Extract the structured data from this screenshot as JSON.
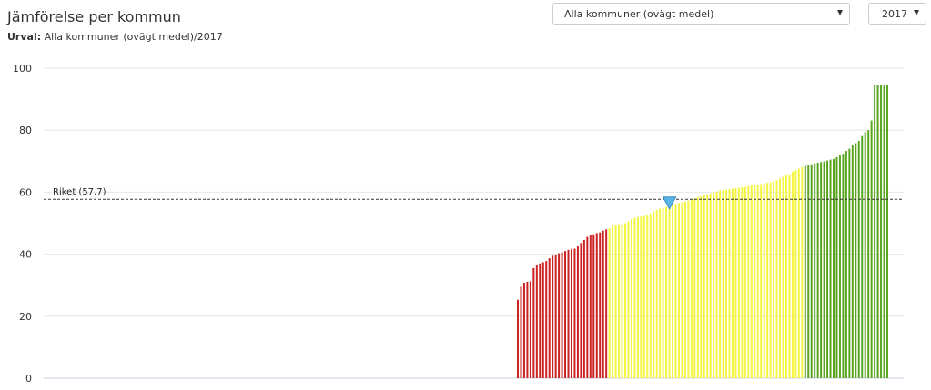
{
  "header": {
    "title": "Jämförelse per kommun",
    "subtitle_label": "Urval:",
    "subtitle_value": "Alla kommuner (ovägt medel)/2017"
  },
  "controls": {
    "kommun_select": "Alla kommuner (ovägt medel)",
    "year_select": "2017"
  },
  "icons": {
    "dropdown": "chevron-down-icon",
    "marker": "triangle-down-icon"
  },
  "colors": {
    "low": "#cc2222",
    "mid": "#f5f542",
    "high": "#5aa520",
    "reference_line": "#333333",
    "marker": "#5ab4e5",
    "grid": "#e6e6e6"
  },
  "chart_data": {
    "type": "bar",
    "title": "",
    "ylim": [
      0,
      100
    ],
    "yticks": [
      0,
      20,
      40,
      60,
      80,
      100
    ],
    "grid": true,
    "reference_line": {
      "label": "Riket (57.7)",
      "value": 57.7
    },
    "highlight_value": 55.5,
    "values": [
      25.3,
      29.5,
      30.8,
      31.1,
      31.3,
      35.5,
      36.5,
      37.0,
      37.4,
      37.8,
      38.7,
      39.5,
      39.9,
      40.3,
      40.6,
      41.0,
      41.4,
      41.7,
      41.8,
      42.5,
      43.6,
      44.6,
      45.6,
      46.1,
      46.4,
      46.8,
      47.0,
      47.6,
      48.0,
      48.4,
      49.2,
      49.5,
      49.6,
      49.7,
      50.0,
      50.6,
      51.2,
      51.7,
      52.0,
      52.1,
      52.3,
      52.5,
      53.0,
      53.8,
      54.3,
      54.7,
      55.0,
      55.3,
      55.5,
      55.8,
      56.2,
      56.5,
      56.7,
      56.9,
      57.3,
      57.6,
      58.0,
      58.4,
      58.7,
      59.0,
      59.3,
      59.6,
      59.9,
      60.2,
      60.5,
      60.7,
      60.8,
      61.0,
      61.1,
      61.3,
      61.4,
      61.6,
      61.7,
      62.0,
      62.2,
      62.3,
      62.3,
      62.6,
      62.8,
      63.0,
      63.2,
      63.5,
      63.9,
      64.4,
      64.9,
      65.4,
      65.8,
      66.6,
      67.1,
      67.6,
      68.1,
      68.5,
      68.8,
      69.0,
      69.3,
      69.5,
      69.7,
      69.9,
      70.2,
      70.5,
      70.7,
      71.3,
      71.9,
      72.4,
      73.3,
      74.0,
      75.1,
      75.8,
      76.5,
      78.1,
      79.4,
      80.0,
      83.1,
      94.6,
      94.6,
      94.6,
      94.6,
      94.6
    ],
    "color_groups": [
      {
        "color": "low",
        "count": 29
      },
      {
        "color": "mid",
        "count": 62
      },
      {
        "color": "high",
        "count": 27
      }
    ]
  }
}
